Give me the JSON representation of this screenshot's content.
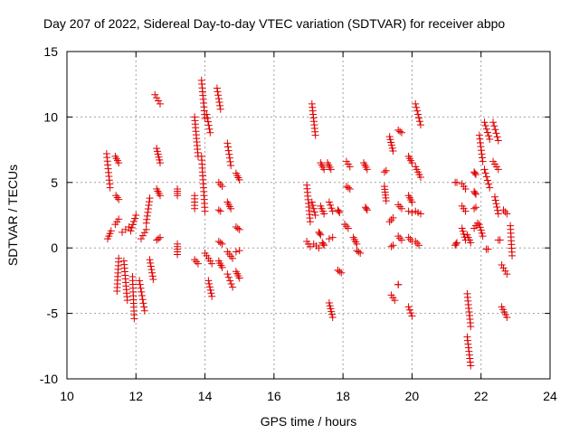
{
  "chart_data": {
    "type": "scatter",
    "title": "Day 207 of 2022, Sidereal Day-to-day VTEC variation (SDTVAR) for receiver abpo",
    "xlabel": "GPS time / hours",
    "ylabel": "SDTVAR / TECUs",
    "xlim": [
      10,
      24
    ],
    "ylim": [
      -10,
      15
    ],
    "xticks": [
      10,
      12,
      14,
      16,
      18,
      20,
      22,
      24
    ],
    "yticks": [
      -10,
      -5,
      0,
      5,
      10,
      15
    ],
    "grid": true,
    "marker": "plus",
    "color": "#e00000",
    "tracks": [
      {
        "t0": 11.15,
        "t1": 11.25,
        "v0": 7.2,
        "v1": 4.6
      },
      {
        "t0": 11.18,
        "t1": 11.28,
        "v0": 0.7,
        "v1": 1.3
      },
      {
        "t0": 11.4,
        "t1": 11.5,
        "v0": 7.0,
        "v1": 6.5
      },
      {
        "t0": 11.42,
        "t1": 11.5,
        "v0": 4.0,
        "v1": 3.7
      },
      {
        "t0": 11.4,
        "t1": 11.5,
        "v0": 1.8,
        "v1": 2.2
      },
      {
        "t0": 11.5,
        "t1": 11.45,
        "v0": -0.8,
        "v1": -3.3
      },
      {
        "t0": 11.65,
        "t1": 11.75,
        "v0": -1.0,
        "v1": -4.0
      },
      {
        "t0": 11.6,
        "t1": 11.8,
        "v0": 1.2,
        "v1": 1.6
      },
      {
        "t0": 11.9,
        "t1": 11.95,
        "v0": -2.2,
        "v1": -5.4
      },
      {
        "t0": 11.85,
        "t1": 12.0,
        "v0": 1.3,
        "v1": 2.5
      },
      {
        "t0": 12.1,
        "t1": 12.25,
        "v0": -2.5,
        "v1": -4.8
      },
      {
        "t0": 12.15,
        "t1": 12.3,
        "v0": 0.7,
        "v1": 1.4
      },
      {
        "t0": 12.3,
        "t1": 12.4,
        "v0": 1.9,
        "v1": 3.8
      },
      {
        "t0": 12.4,
        "t1": 12.5,
        "v0": -0.9,
        "v1": -2.4
      },
      {
        "t0": 12.55,
        "t1": 12.7,
        "v0": 11.7,
        "v1": 11.0
      },
      {
        "t0": 12.6,
        "t1": 12.7,
        "v0": 7.6,
        "v1": 6.5
      },
      {
        "t0": 12.6,
        "t1": 12.7,
        "v0": 4.5,
        "v1": 4.0
      },
      {
        "t0": 12.6,
        "t1": 12.7,
        "v0": 0.6,
        "v1": 0.8
      },
      {
        "t0": 13.2,
        "t1": 13.2,
        "v0": 4.5,
        "v1": 4.0
      },
      {
        "t0": 13.2,
        "t1": 13.2,
        "v0": 0.3,
        "v1": -0.5
      },
      {
        "t0": 13.7,
        "t1": 13.7,
        "v0": 4.0,
        "v1": 3.0
      },
      {
        "t0": 13.7,
        "t1": 13.8,
        "v0": 10.0,
        "v1": 7.0
      },
      {
        "t0": 13.7,
        "t1": 13.8,
        "v0": -0.9,
        "v1": -1.2
      },
      {
        "t0": 13.9,
        "t1": 14.0,
        "v0": 12.8,
        "v1": 9.9
      },
      {
        "t0": 13.9,
        "t1": 14.0,
        "v0": 7.0,
        "v1": 2.8
      },
      {
        "t0": 14.05,
        "t1": 14.15,
        "v0": 10.2,
        "v1": 8.8
      },
      {
        "t0": 14.0,
        "t1": 14.2,
        "v0": -0.4,
        "v1": -1.2
      },
      {
        "t0": 14.1,
        "t1": 14.2,
        "v0": -2.5,
        "v1": -3.7
      },
      {
        "t0": 14.35,
        "t1": 14.45,
        "v0": 12.2,
        "v1": 10.6
      },
      {
        "t0": 14.4,
        "t1": 14.5,
        "v0": 5.0,
        "v1": 4.7
      },
      {
        "t0": 14.4,
        "t1": 14.45,
        "v0": 2.9,
        "v1": 2.8
      },
      {
        "t0": 14.4,
        "t1": 14.5,
        "v0": 0.5,
        "v1": 0.3
      },
      {
        "t0": 14.4,
        "t1": 14.5,
        "v0": -1.0,
        "v1": -1.5
      },
      {
        "t0": 14.65,
        "t1": 14.75,
        "v0": 8.0,
        "v1": 6.3
      },
      {
        "t0": 14.65,
        "t1": 14.75,
        "v0": 3.5,
        "v1": 3.0
      },
      {
        "t0": 14.65,
        "t1": 14.8,
        "v0": -0.3,
        "v1": -0.8
      },
      {
        "t0": 14.65,
        "t1": 14.8,
        "v0": -2.0,
        "v1": -3.0
      },
      {
        "t0": 14.9,
        "t1": 15.0,
        "v0": 5.7,
        "v1": 5.2
      },
      {
        "t0": 14.9,
        "t1": 15.0,
        "v0": 1.6,
        "v1": 1.4
      },
      {
        "t0": 14.9,
        "t1": 15.0,
        "v0": -0.3,
        "v1": -0.2
      },
      {
        "t0": 14.9,
        "t1": 15.0,
        "v0": -1.8,
        "v1": -2.3
      },
      {
        "t0": 16.95,
        "t1": 17.05,
        "v0": 4.8,
        "v1": 2.0
      },
      {
        "t0": 16.95,
        "t1": 17.05,
        "v0": 0.5,
        "v1": 0.1
      },
      {
        "t0": 17.1,
        "t1": 17.2,
        "v0": 11.0,
        "v1": 8.6
      },
      {
        "t0": 17.1,
        "t1": 17.2,
        "v0": 3.5,
        "v1": 2.5
      },
      {
        "t0": 17.15,
        "t1": 17.3,
        "v0": 0.3,
        "v1": 0.0
      },
      {
        "t0": 17.35,
        "t1": 17.45,
        "v0": 6.5,
        "v1": 6.0
      },
      {
        "t0": 17.35,
        "t1": 17.45,
        "v0": 3.2,
        "v1": 2.6
      },
      {
        "t0": 17.3,
        "t1": 17.35,
        "v0": 1.2,
        "v1": 1.0
      },
      {
        "t0": 17.4,
        "t1": 17.45,
        "v0": 0.4,
        "v1": 0.2
      },
      {
        "t0": 17.55,
        "t1": 17.65,
        "v0": 6.5,
        "v1": 6.0
      },
      {
        "t0": 17.6,
        "t1": 17.7,
        "v0": 3.5,
        "v1": 2.8
      },
      {
        "t0": 17.6,
        "t1": 17.7,
        "v0": -4.2,
        "v1": -5.3
      },
      {
        "t0": 17.6,
        "t1": 17.7,
        "v0": 0.7,
        "v1": 0.8
      },
      {
        "t0": 17.85,
        "t1": 17.9,
        "v0": 2.9,
        "v1": 2.7
      },
      {
        "t0": 17.85,
        "t1": 17.95,
        "v0": -1.7,
        "v1": -1.9
      },
      {
        "t0": 18.1,
        "t1": 18.2,
        "v0": 6.6,
        "v1": 6.2
      },
      {
        "t0": 18.1,
        "t1": 18.2,
        "v0": 4.7,
        "v1": 4.5
      },
      {
        "t0": 18.05,
        "t1": 18.15,
        "v0": 1.8,
        "v1": 1.5
      },
      {
        "t0": 18.3,
        "t1": 18.4,
        "v0": 0.8,
        "v1": 0.3
      },
      {
        "t0": 18.4,
        "t1": 18.5,
        "v0": -0.2,
        "v1": -0.4
      },
      {
        "t0": 18.6,
        "t1": 18.7,
        "v0": 6.5,
        "v1": 6.0
      },
      {
        "t0": 18.65,
        "t1": 18.7,
        "v0": 3.1,
        "v1": 2.9
      },
      {
        "t0": 19.2,
        "t1": 19.25,
        "v0": 5.8,
        "v1": 5.9
      },
      {
        "t0": 19.2,
        "t1": 19.25,
        "v0": 4.7,
        "v1": 3.6
      },
      {
        "t0": 19.35,
        "t1": 19.45,
        "v0": 8.5,
        "v1": 7.4
      },
      {
        "t0": 19.35,
        "t1": 19.45,
        "v0": 2.0,
        "v1": 2.3
      },
      {
        "t0": 19.4,
        "t1": 19.45,
        "v0": 0.1,
        "v1": 0.2
      },
      {
        "t0": 19.4,
        "t1": 19.5,
        "v0": -3.6,
        "v1": -4.0
      },
      {
        "t0": 19.6,
        "t1": 19.7,
        "v0": 9.0,
        "v1": 8.8
      },
      {
        "t0": 19.6,
        "t1": 19.7,
        "v0": 3.3,
        "v1": 3.0
      },
      {
        "t0": 19.6,
        "t1": 19.7,
        "v0": 0.9,
        "v1": 0.6
      },
      {
        "t0": 19.6,
        "t1": 19.6,
        "v0": -2.8,
        "v1": -2.8
      },
      {
        "t0": 19.9,
        "t1": 20.0,
        "v0": 7.0,
        "v1": 6.5
      },
      {
        "t0": 19.9,
        "t1": 20.0,
        "v0": 4.0,
        "v1": 3.5
      },
      {
        "t0": 19.9,
        "t1": 20.0,
        "v0": 2.8,
        "v1": 2.7
      },
      {
        "t0": 19.9,
        "t1": 20.0,
        "v0": 0.8,
        "v1": 0.5
      },
      {
        "t0": 19.9,
        "t1": 20.0,
        "v0": -4.5,
        "v1": -5.2
      },
      {
        "t0": 20.1,
        "t1": 20.25,
        "v0": 11.0,
        "v1": 9.4
      },
      {
        "t0": 20.1,
        "t1": 20.25,
        "v0": 6.2,
        "v1": 5.4
      },
      {
        "t0": 20.1,
        "t1": 20.25,
        "v0": 2.8,
        "v1": 2.6
      },
      {
        "t0": 20.1,
        "t1": 20.2,
        "v0": 0.5,
        "v1": 0.2
      },
      {
        "t0": 21.25,
        "t1": 21.3,
        "v0": 5.0,
        "v1": 5.0
      },
      {
        "t0": 21.25,
        "t1": 21.3,
        "v0": 0.2,
        "v1": 0.4
      },
      {
        "t0": 21.45,
        "t1": 21.55,
        "v0": 4.9,
        "v1": 4.5
      },
      {
        "t0": 21.45,
        "t1": 21.55,
        "v0": 3.2,
        "v1": 2.8
      },
      {
        "t0": 21.45,
        "t1": 21.55,
        "v0": 1.5,
        "v1": 0.6
      },
      {
        "t0": 21.6,
        "t1": 21.7,
        "v0": -3.5,
        "v1": -6.0
      },
      {
        "t0": 21.6,
        "t1": 21.7,
        "v0": 1.0,
        "v1": 0.4
      },
      {
        "t0": 21.6,
        "t1": 21.7,
        "v0": -6.8,
        "v1": -9.0
      },
      {
        "t0": 21.8,
        "t1": 21.85,
        "v0": 5.8,
        "v1": 5.6
      },
      {
        "t0": 21.8,
        "t1": 21.85,
        "v0": 4.3,
        "v1": 4.1
      },
      {
        "t0": 21.8,
        "t1": 21.85,
        "v0": 3.0,
        "v1": 3.1
      },
      {
        "t0": 21.8,
        "t1": 21.9,
        "v0": 1.5,
        "v1": 1.9
      },
      {
        "t0": 21.95,
        "t1": 22.05,
        "v0": 8.6,
        "v1": 6.6
      },
      {
        "t0": 21.95,
        "t1": 22.05,
        "v0": 1.8,
        "v1": 0.9
      },
      {
        "t0": 22.1,
        "t1": 22.25,
        "v0": 9.6,
        "v1": 8.3
      },
      {
        "t0": 22.1,
        "t1": 22.25,
        "v0": 6.0,
        "v1": 4.6
      },
      {
        "t0": 22.15,
        "t1": 22.2,
        "v0": -0.1,
        "v1": -0.1
      },
      {
        "t0": 22.35,
        "t1": 22.5,
        "v0": 9.6,
        "v1": 8.2
      },
      {
        "t0": 22.35,
        "t1": 22.5,
        "v0": 6.6,
        "v1": 6.0
      },
      {
        "t0": 22.4,
        "t1": 22.5,
        "v0": 3.9,
        "v1": 2.6
      },
      {
        "t0": 22.5,
        "t1": 22.55,
        "v0": 0.6,
        "v1": 0.6
      },
      {
        "t0": 22.6,
        "t1": 22.75,
        "v0": -1.3,
        "v1": -2.0
      },
      {
        "t0": 22.6,
        "t1": 22.75,
        "v0": -4.5,
        "v1": -5.3
      },
      {
        "t0": 22.65,
        "t1": 22.75,
        "v0": 2.9,
        "v1": 2.6
      },
      {
        "t0": 22.85,
        "t1": 22.9,
        "v0": 1.7,
        "v1": -0.6
      }
    ]
  }
}
